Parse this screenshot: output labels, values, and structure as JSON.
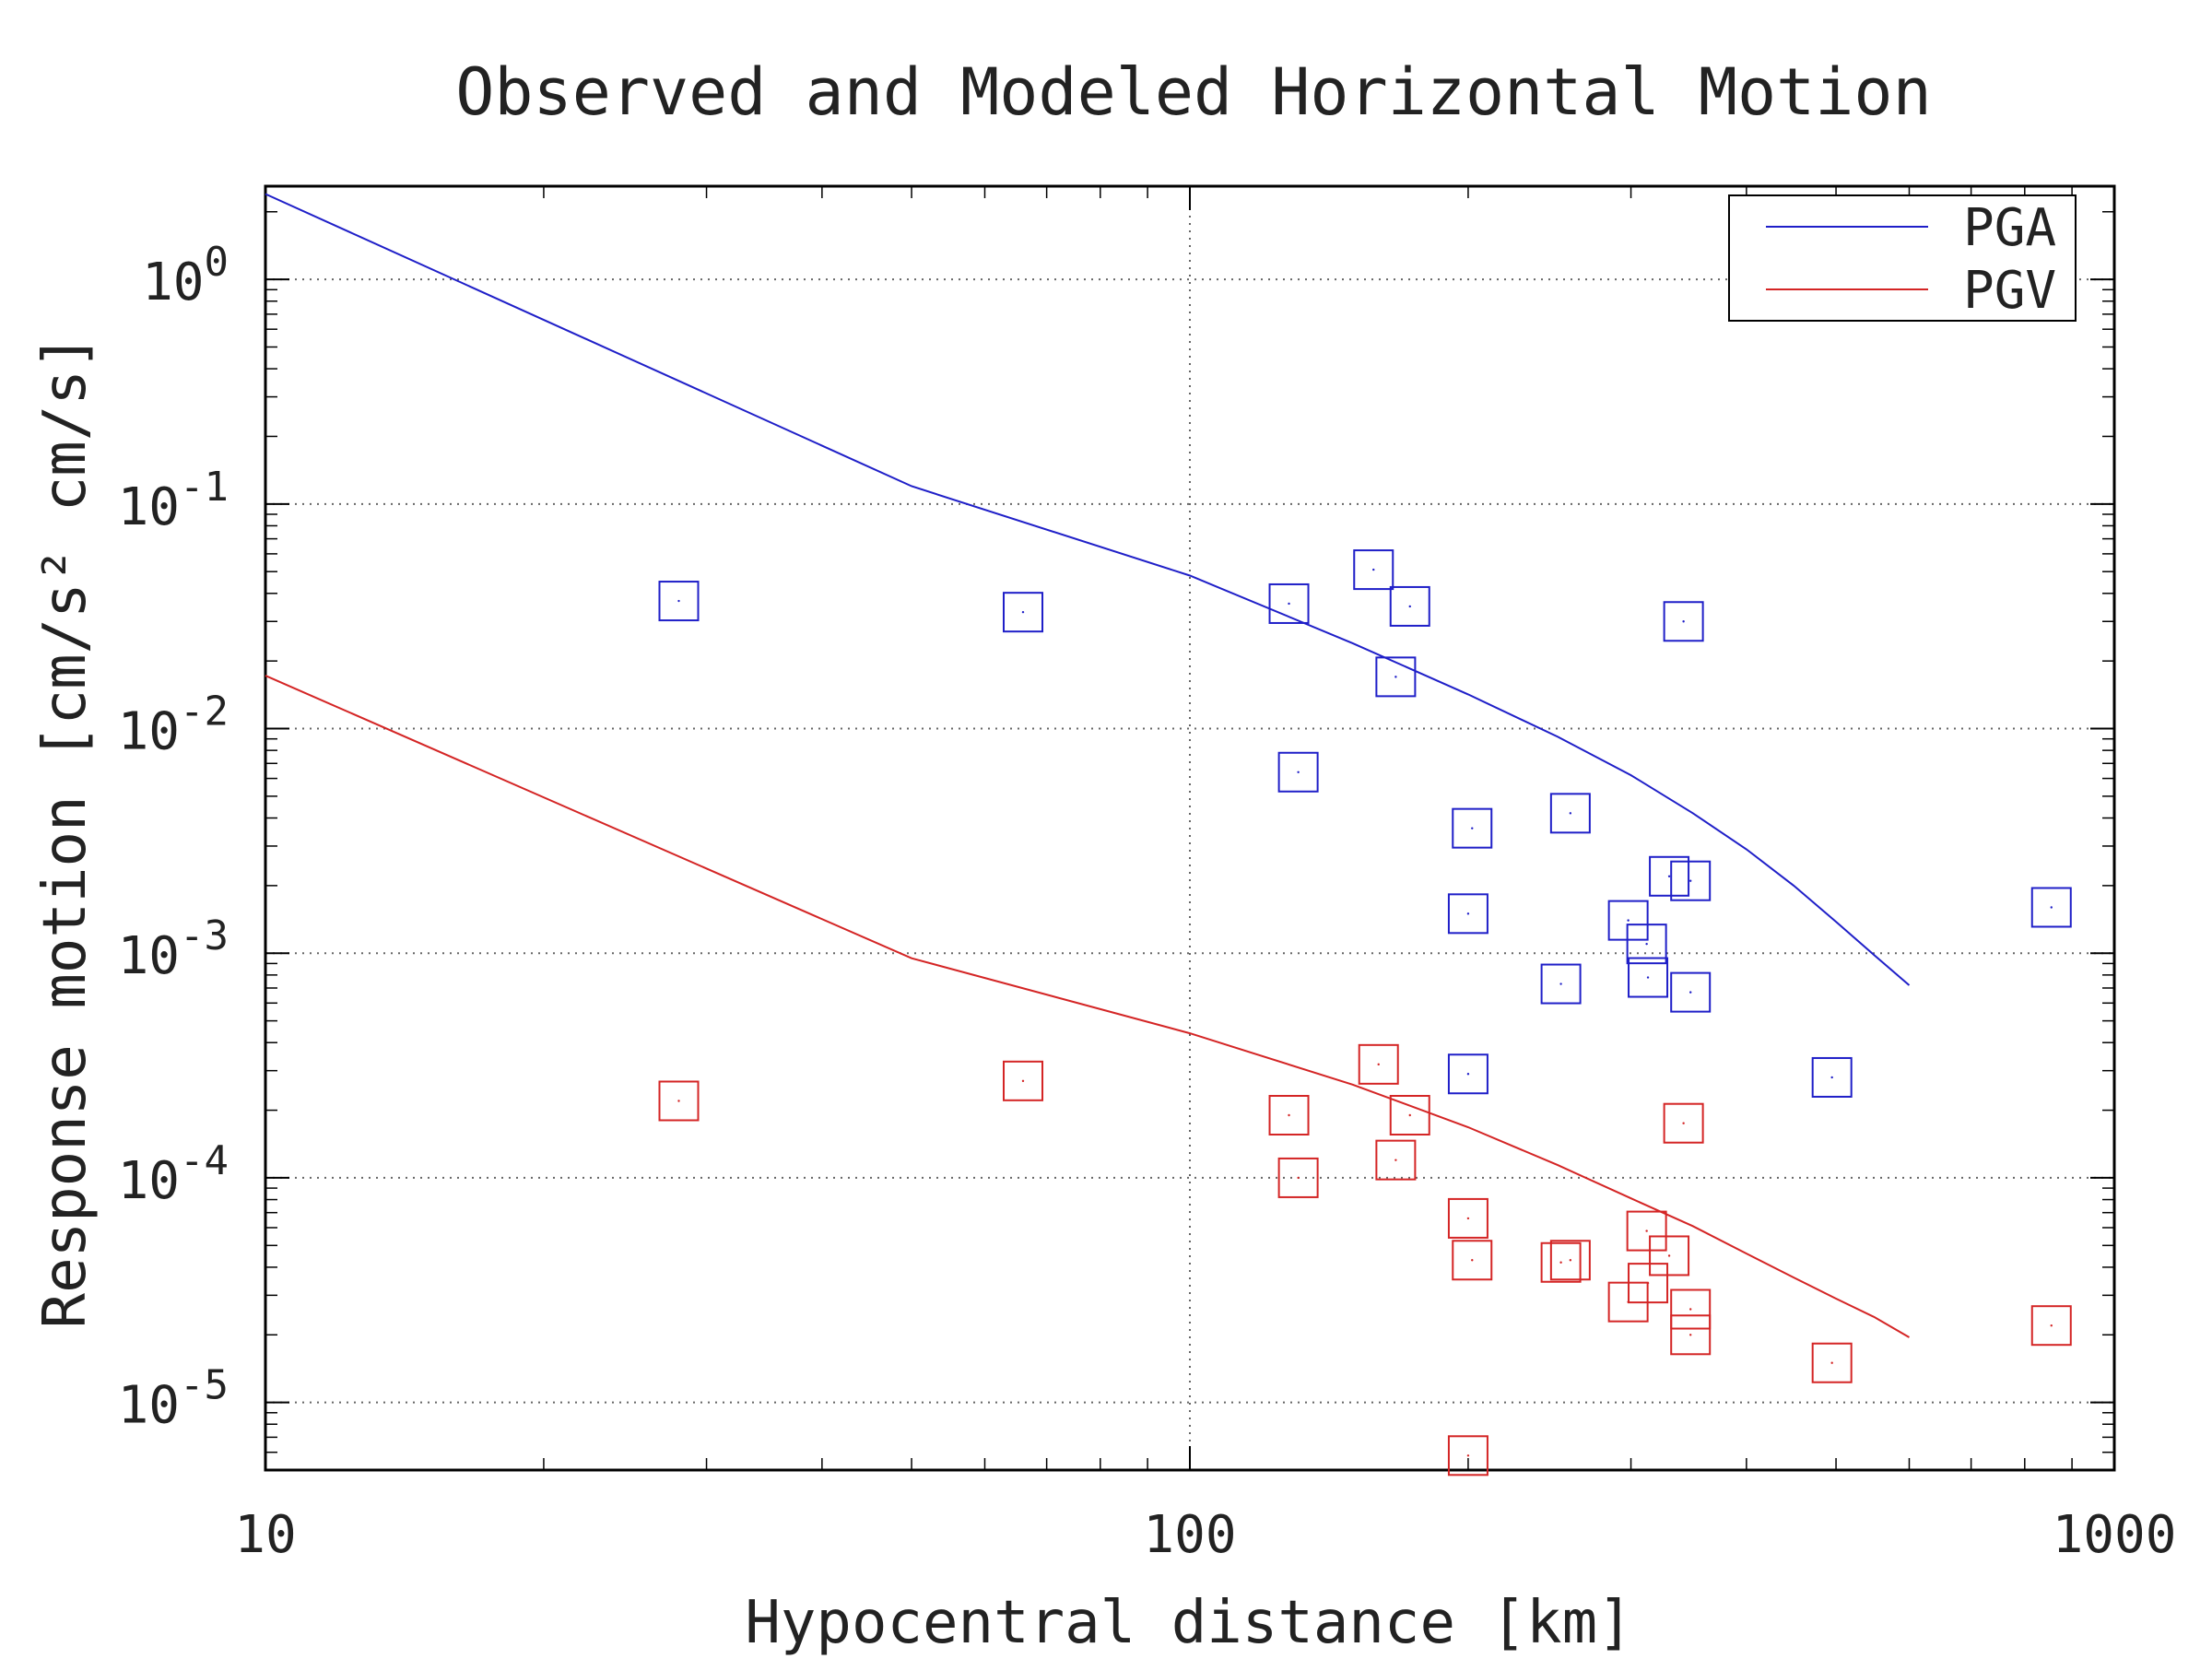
{
  "colors": {
    "pga": "#1f1fc8",
    "pgv": "#d42525",
    "axis": "#000000",
    "grid": "#666666",
    "text": "#222222"
  },
  "chart_data": {
    "type": "scatter",
    "title": "Observed and Modeled Horizontal Motion",
    "xlabel": "Hypocentral distance [km]",
    "ylabel": "Response motion [cm/s² cm/s]",
    "x_scale": "log",
    "y_scale": "log",
    "xlim": [
      10,
      1000
    ],
    "ylim": [
      5e-06,
      2.6
    ],
    "grid": true,
    "legend_position": "top-right",
    "x_ticks": [
      {
        "value": 10,
        "label": "10"
      },
      {
        "value": 100,
        "label": "100"
      },
      {
        "value": 1000,
        "label": "1000"
      }
    ],
    "y_ticks": [
      {
        "value": 1,
        "mantissa": "10",
        "exponent": "0"
      },
      {
        "value": 0.1,
        "mantissa": "10",
        "exponent": "-1"
      },
      {
        "value": 0.01,
        "mantissa": "10",
        "exponent": "-2"
      },
      {
        "value": 0.001,
        "mantissa": "10",
        "exponent": "-3"
      },
      {
        "value": 0.0001,
        "mantissa": "10",
        "exponent": "-4"
      },
      {
        "value": 1e-05,
        "mantissa": "10",
        "exponent": "-5"
      }
    ],
    "lines": [
      {
        "name": "PGA",
        "color": "#1f1fc8",
        "x": [
          10,
          50,
          100,
          150,
          200,
          250,
          300,
          350,
          400,
          450,
          500,
          550,
          600
        ],
        "y": [
          2.4,
          0.12,
          0.048,
          0.024,
          0.0142,
          0.0092,
          0.0062,
          0.0042,
          0.0029,
          0.002,
          0.00138,
          0.00098,
          0.00072
        ]
      },
      {
        "name": "PGV",
        "color": "#d42525",
        "x": [
          10,
          50,
          100,
          150,
          200,
          250,
          300,
          350,
          400,
          450,
          500,
          550,
          600
        ],
        "y": [
          0.0172,
          0.00095,
          0.00044,
          0.00026,
          0.000168,
          0.000114,
          8.1e-05,
          6.1e-05,
          4.6e-05,
          3.6e-05,
          2.9e-05,
          2.4e-05,
          1.95e-05
        ]
      }
    ],
    "series": [
      {
        "name": "PGA",
        "color": "#1f1fc8",
        "points": [
          {
            "x": 28,
            "y": 0.037
          },
          {
            "x": 66,
            "y": 0.033
          },
          {
            "x": 128,
            "y": 0.036
          },
          {
            "x": 131,
            "y": 0.0064
          },
          {
            "x": 158,
            "y": 0.051
          },
          {
            "x": 167,
            "y": 0.017
          },
          {
            "x": 173,
            "y": 0.035
          },
          {
            "x": 200,
            "y": 0.0015
          },
          {
            "x": 202,
            "y": 0.0036
          },
          {
            "x": 200,
            "y": 0.00029
          },
          {
            "x": 252,
            "y": 0.00073
          },
          {
            "x": 258,
            "y": 0.0042
          },
          {
            "x": 298,
            "y": 0.0014
          },
          {
            "x": 312,
            "y": 0.0011
          },
          {
            "x": 313,
            "y": 0.00078
          },
          {
            "x": 330,
            "y": 0.0022
          },
          {
            "x": 342,
            "y": 0.03
          },
          {
            "x": 348,
            "y": 0.0021
          },
          {
            "x": 348,
            "y": 0.00067
          },
          {
            "x": 495,
            "y": 0.00028
          },
          {
            "x": 855,
            "y": 0.0016
          }
        ]
      },
      {
        "name": "PGV",
        "color": "#d42525",
        "points": [
          {
            "x": 28,
            "y": 0.00022
          },
          {
            "x": 66,
            "y": 0.00027
          },
          {
            "x": 128,
            "y": 0.00019
          },
          {
            "x": 131,
            "y": 0.0001
          },
          {
            "x": 160,
            "y": 0.00032
          },
          {
            "x": 167,
            "y": 0.00012
          },
          {
            "x": 173,
            "y": 0.00019
          },
          {
            "x": 200,
            "y": 6.6e-05
          },
          {
            "x": 202,
            "y": 4.3e-05
          },
          {
            "x": 200,
            "y": 5.8e-06
          },
          {
            "x": 252,
            "y": 4.2e-05
          },
          {
            "x": 258,
            "y": 4.3e-05
          },
          {
            "x": 298,
            "y": 2.8e-05
          },
          {
            "x": 312,
            "y": 5.8e-05
          },
          {
            "x": 313,
            "y": 3.4e-05
          },
          {
            "x": 330,
            "y": 4.5e-05
          },
          {
            "x": 342,
            "y": 0.000175
          },
          {
            "x": 348,
            "y": 2.6e-05
          },
          {
            "x": 348,
            "y": 2e-05
          },
          {
            "x": 495,
            "y": 1.5e-05
          },
          {
            "x": 855,
            "y": 2.2e-05
          }
        ]
      }
    ]
  }
}
